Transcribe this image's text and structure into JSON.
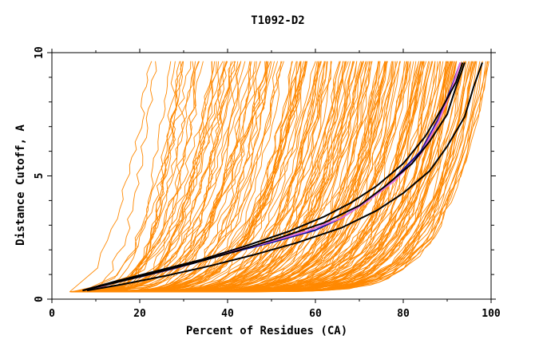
{
  "chart_data": {
    "type": "line",
    "title": "T1092-D2",
    "xlabel": "Percent of Residues (CA)",
    "ylabel": "Distance Cutoff, A",
    "xlim": [
      0,
      100
    ],
    "ylim": [
      0,
      10
    ],
    "x_ticks": [
      "0",
      "20",
      "40",
      "60",
      "80",
      "100"
    ],
    "y_ticks": [
      "0",
      "5",
      "10"
    ],
    "grid": false,
    "legend": "none",
    "colors": {
      "background_models": "#ff8800",
      "highlight_blue": "#1010a0",
      "highlight_black": "#000000",
      "highlight_pink": "#e070e0"
    },
    "series": [
      {
        "color": "#1010a0",
        "x": [
          7,
          12,
          20,
          28,
          35,
          40,
          50,
          60,
          66,
          72,
          78,
          84,
          88,
          91,
          93
        ],
        "y": [
          0.35,
          0.6,
          0.9,
          1.25,
          1.6,
          1.85,
          2.3,
          2.8,
          3.3,
          4.0,
          4.9,
          6.0,
          7.3,
          8.6,
          9.6
        ]
      },
      {
        "color": "#e070e0",
        "x": [
          8,
          14,
          22,
          30,
          38,
          48,
          58,
          66,
          72,
          78,
          84,
          88,
          91,
          93
        ],
        "y": [
          0.35,
          0.65,
          1.0,
          1.35,
          1.8,
          2.25,
          2.75,
          3.3,
          4.0,
          4.8,
          5.9,
          7.2,
          8.5,
          9.6
        ]
      },
      {
        "color": "#000000",
        "x": [
          7,
          14,
          22,
          32,
          42,
          52,
          62,
          70,
          76,
          82,
          86,
          90,
          92,
          94
        ],
        "y": [
          0.35,
          0.65,
          1.0,
          1.45,
          1.95,
          2.5,
          3.1,
          3.8,
          4.6,
          5.5,
          6.4,
          7.5,
          8.6,
          9.6
        ]
      },
      {
        "color": "#000000",
        "x": [
          7,
          14,
          24,
          34,
          44,
          54,
          62,
          68,
          74,
          80,
          85,
          89,
          92,
          93.5
        ],
        "y": [
          0.35,
          0.7,
          1.15,
          1.6,
          2.15,
          2.75,
          3.35,
          3.9,
          4.6,
          5.5,
          6.6,
          7.8,
          8.8,
          9.6
        ]
      },
      {
        "color": "#000000",
        "x": [
          8,
          16,
          26,
          36,
          46,
          56,
          66,
          74,
          80,
          86,
          90,
          94,
          96,
          98
        ],
        "y": [
          0.35,
          0.6,
          0.95,
          1.35,
          1.8,
          2.3,
          2.9,
          3.6,
          4.3,
          5.2,
          6.2,
          7.4,
          8.6,
          9.6
        ]
      }
    ]
  }
}
